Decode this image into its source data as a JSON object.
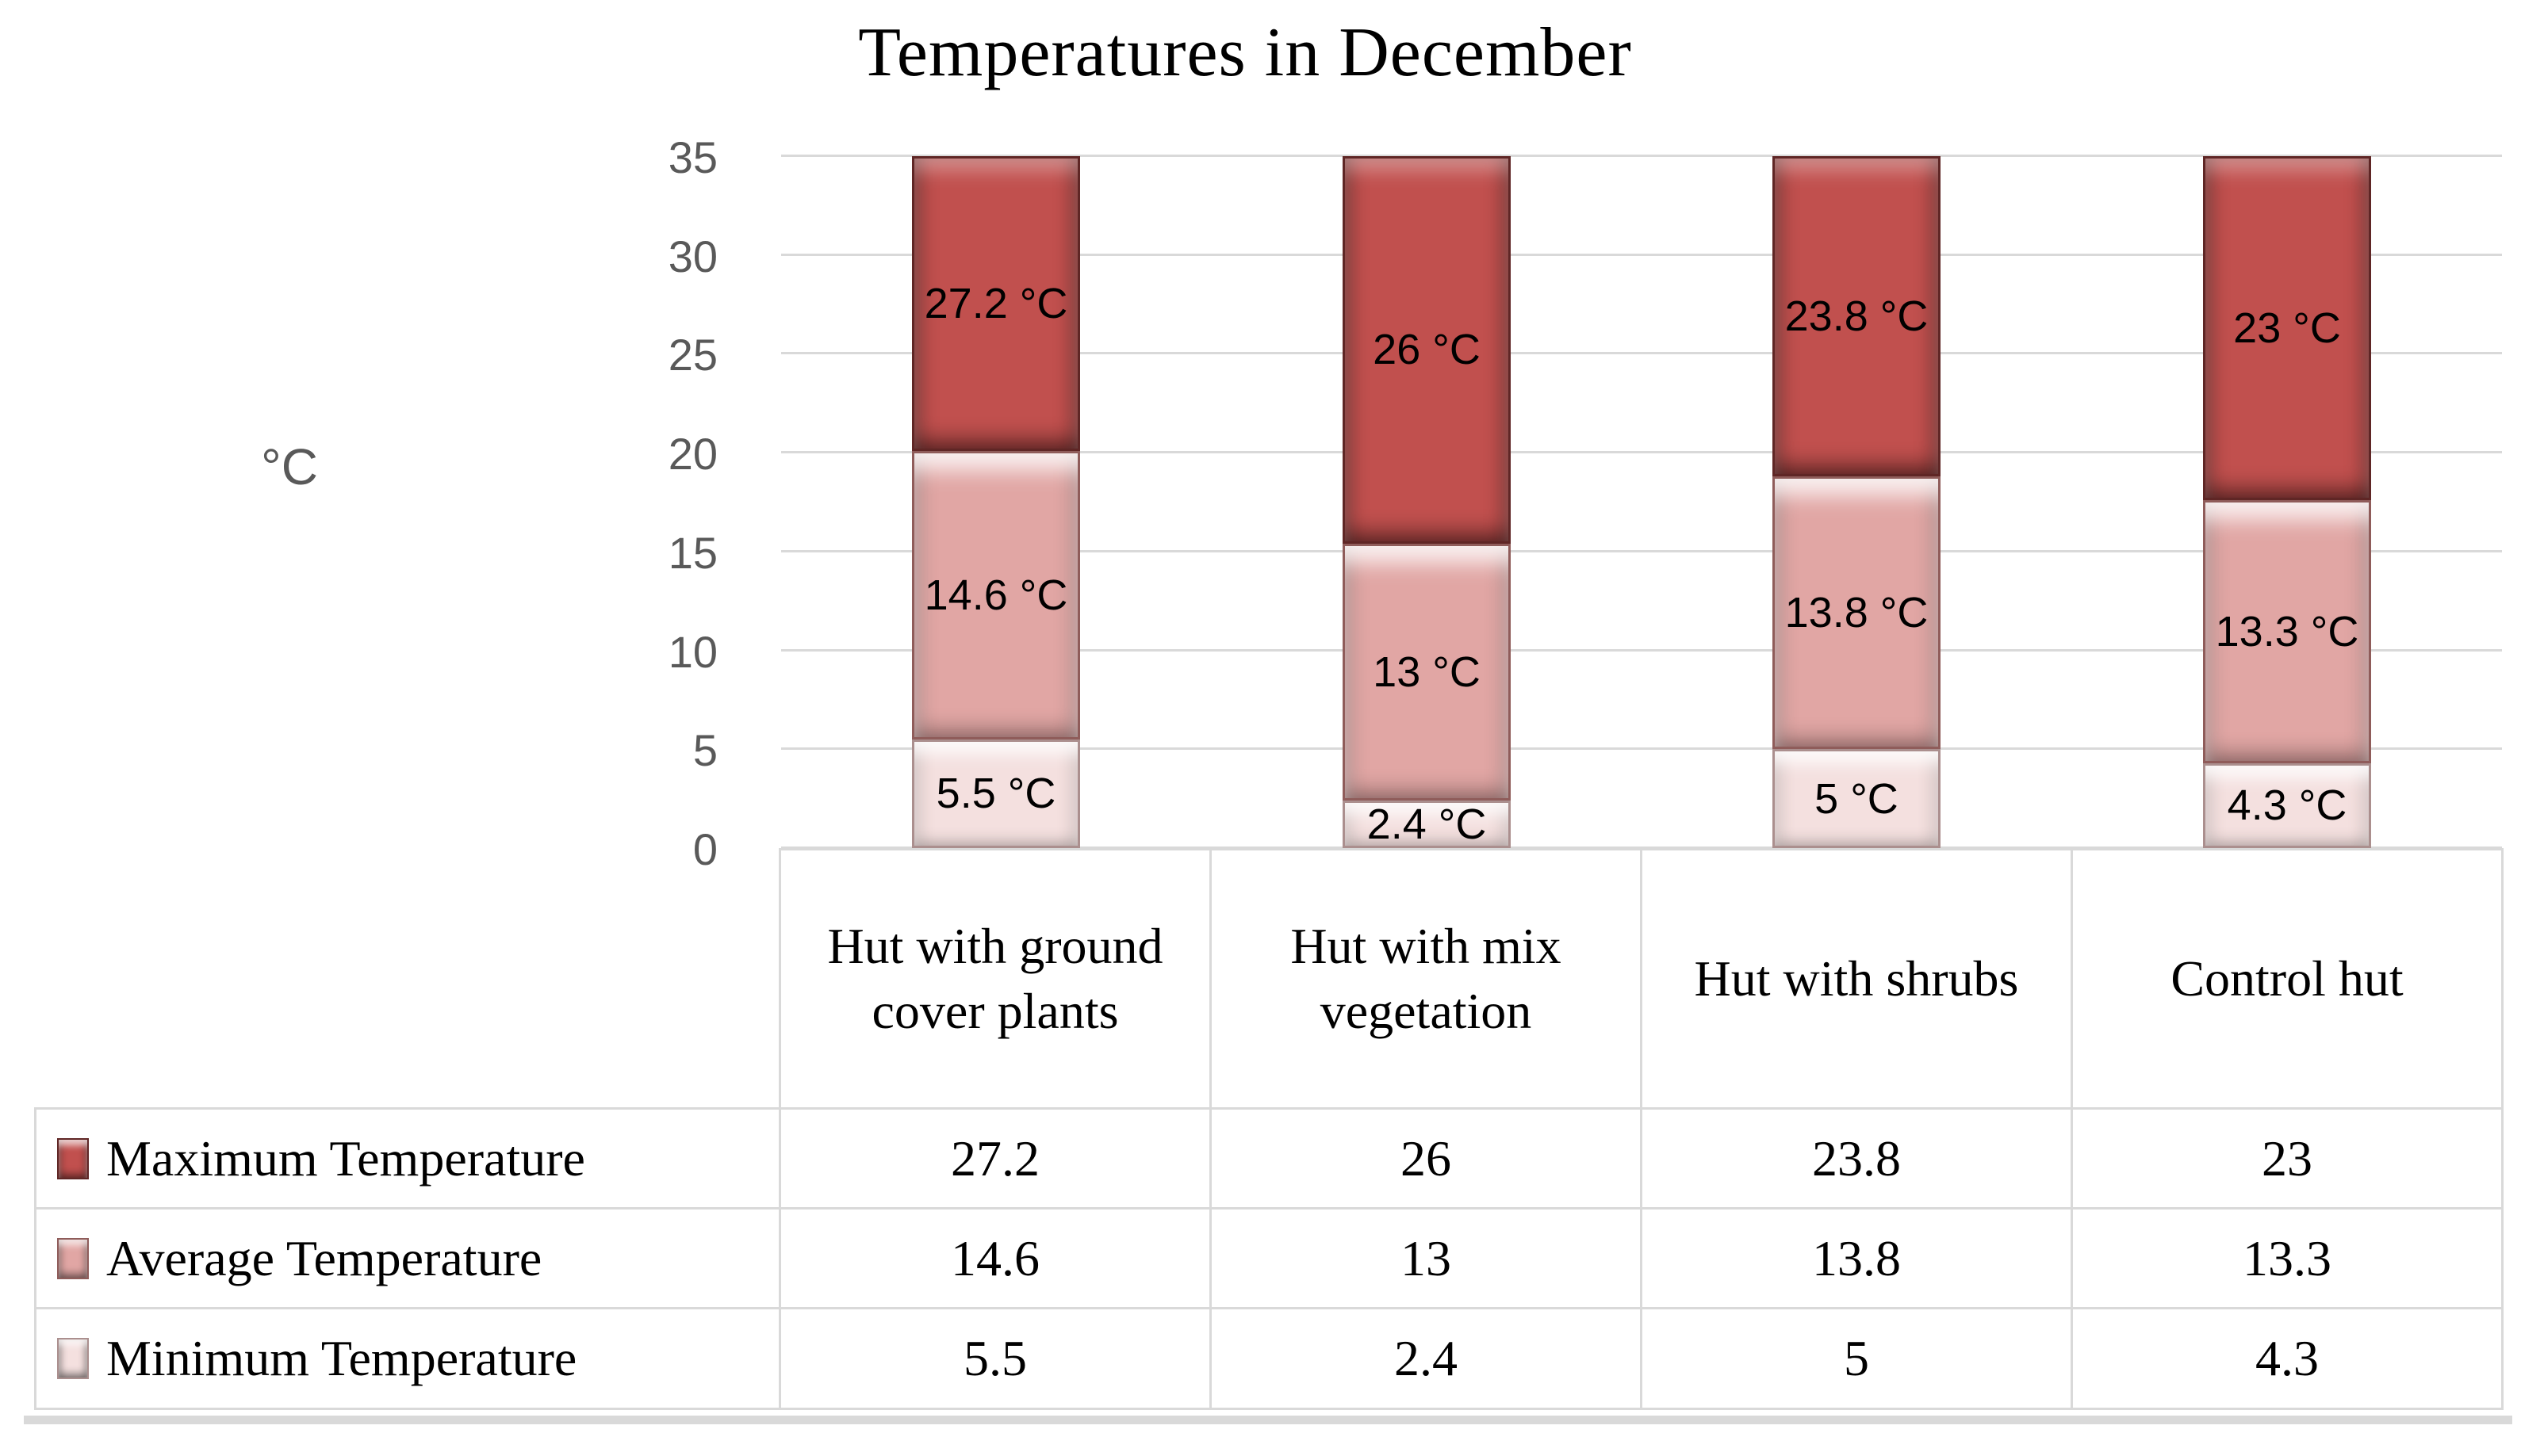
{
  "chart_data": {
    "type": "bar",
    "subtype": "stacked-clipped-at-ymax",
    "title": "Temperatures in December",
    "ylabel": "°C",
    "ylim": [
      0,
      35
    ],
    "yticks": [
      0,
      5,
      10,
      15,
      20,
      25,
      30,
      35
    ],
    "grid": true,
    "legend_position": "left-of-data-table",
    "categories": [
      "Hut with ground cover plants",
      "Hut with mix vegetation",
      "Hut with shrubs",
      "Control hut"
    ],
    "series": [
      {
        "name": "Maximum Temperature",
        "color": "#c1504e",
        "values": [
          27.2,
          26,
          23.8,
          23
        ],
        "labels": [
          "27.2 °C",
          "26 °C",
          "23.8 °C",
          "23 °C"
        ]
      },
      {
        "name": "Average Temperature",
        "color": "#e1a6a4",
        "values": [
          14.6,
          13,
          13.8,
          13.3
        ],
        "labels": [
          "14.6 °C",
          "13 °C",
          "13.8 °C",
          "13.3 °C"
        ]
      },
      {
        "name": "Minimum Temperature",
        "color": "#f4e0df",
        "values": [
          5.5,
          2.4,
          5,
          4.3
        ],
        "labels": [
          "5.5 °C",
          "2.4 °C",
          "5 °C",
          "4.3 °C"
        ]
      }
    ],
    "colors": {
      "gridline": "#d9d9d9",
      "table_border": "#d9d9d9",
      "axis_text": "#595959",
      "label_text": "#000000"
    }
  }
}
